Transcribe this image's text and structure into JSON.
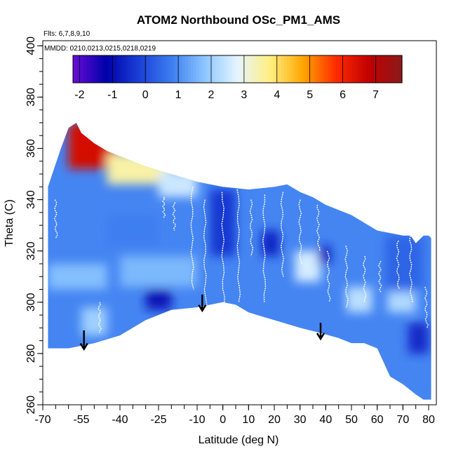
{
  "chart_data": {
    "type": "heatmap",
    "title": "ATOM2 Northbound OSc_PM1_AMS",
    "flights_note": "Flts: 6,7,8,9,10",
    "dates_note": "MMDD: 0210,0213,0215,0218,0219",
    "xlabel": "Latitude (deg N)",
    "ylabel": "Theta (C)",
    "xlim": [
      -70,
      83
    ],
    "ylim": [
      260,
      402
    ],
    "x_ticks": [
      -70,
      -55,
      -40,
      -25,
      -10,
      0,
      10,
      20,
      30,
      40,
      50,
      60,
      70,
      80
    ],
    "y_ticks": [
      260,
      280,
      300,
      320,
      340,
      360,
      380,
      400
    ],
    "colorbar": {
      "min": -2.2,
      "max": 7.8,
      "ticks": [
        -2,
        -1,
        0,
        1,
        2,
        3,
        4,
        5,
        6,
        7
      ],
      "colors": [
        "#6a0dd8",
        "#0000a8",
        "#1a3fd6",
        "#3d7ef0",
        "#8cc6ff",
        "#e6f5ff",
        "#ffef80",
        "#ffa500",
        "#ff2a00",
        "#c00000",
        "#8b1a1a"
      ]
    },
    "field_bounds": {
      "top": [
        [
          -68,
          345
        ],
        [
          -63,
          360
        ],
        [
          -60,
          368
        ],
        [
          -57,
          370
        ],
        [
          -55,
          366
        ],
        [
          -50,
          362
        ],
        [
          -45,
          359
        ],
        [
          -40,
          357
        ],
        [
          -30,
          353
        ],
        [
          -20,
          350
        ],
        [
          -10,
          347
        ],
        [
          0,
          345
        ],
        [
          10,
          344
        ],
        [
          20,
          345
        ],
        [
          25,
          346
        ],
        [
          30,
          343
        ],
        [
          35,
          341
        ],
        [
          40,
          338
        ],
        [
          45,
          336
        ],
        [
          50,
          334
        ],
        [
          55,
          331
        ],
        [
          60,
          328
        ],
        [
          65,
          327
        ],
        [
          70,
          326
        ],
        [
          73,
          326
        ],
        [
          75,
          323
        ],
        [
          78,
          326
        ],
        [
          80,
          326
        ],
        [
          81,
          325
        ]
      ],
      "bottom": [
        [
          -68,
          282
        ],
        [
          -60,
          282
        ],
        [
          -50,
          284
        ],
        [
          -40,
          287
        ],
        [
          -30,
          293
        ],
        [
          -20,
          297
        ],
        [
          -10,
          298
        ],
        [
          -5,
          299
        ],
        [
          0,
          300
        ],
        [
          5,
          299
        ],
        [
          10,
          296
        ],
        [
          20,
          293
        ],
        [
          30,
          290
        ],
        [
          38,
          288
        ],
        [
          45,
          286
        ],
        [
          50,
          284
        ],
        [
          55,
          284
        ],
        [
          60,
          282
        ],
        [
          65,
          271
        ],
        [
          70,
          268
        ],
        [
          75,
          264
        ],
        [
          78,
          262
        ],
        [
          81,
          262
        ]
      ]
    },
    "color_regions": [
      {
        "x": [
          -60,
          -40
        ],
        "y": [
          352,
          370
        ],
        "value": 6.5
      },
      {
        "x": [
          -45,
          -20
        ],
        "y": [
          346,
          358
        ],
        "value": 3.5
      },
      {
        "x": [
          -25,
          -10
        ],
        "y": [
          341,
          351
        ],
        "value": 2.5
      },
      {
        "x": [
          -68,
          -45
        ],
        "y": [
          305,
          315
        ],
        "value": 1.7
      },
      {
        "x": [
          -40,
          -10
        ],
        "y": [
          306,
          318
        ],
        "value": 1.6
      },
      {
        "x": [
          -30,
          -20
        ],
        "y": [
          297,
          305
        ],
        "value": -0.9
      },
      {
        "x": [
          -45,
          -25
        ],
        "y": [
          322,
          334
        ],
        "value": 0.8
      },
      {
        "x": [
          -55,
          -45
        ],
        "y": [
          287,
          298
        ],
        "value": 2.0
      },
      {
        "x": [
          -5,
          5
        ],
        "y": [
          318,
          344
        ],
        "value": -0.3
      },
      {
        "x": [
          15,
          22
        ],
        "y": [
          318,
          328
        ],
        "value": -0.6
      },
      {
        "x": [
          28,
          38
        ],
        "y": [
          308,
          320
        ],
        "value": 2.6
      },
      {
        "x": [
          37,
          42
        ],
        "y": [
          315,
          322
        ],
        "value": -0.7
      },
      {
        "x": [
          48,
          58
        ],
        "y": [
          296,
          306
        ],
        "value": 2.3
      },
      {
        "x": [
          64,
          75
        ],
        "y": [
          296,
          304
        ],
        "value": 2.2
      },
      {
        "x": [
          72,
          80
        ],
        "y": [
          280,
          292
        ],
        "value": -0.5
      },
      {
        "x": [
          63,
          78
        ],
        "y": [
          305,
          326
        ],
        "value": 0.4
      }
    ],
    "profile_traces": [
      {
        "x0": -23,
        "top": 341,
        "bottom": 333
      },
      {
        "x0": -19,
        "top": 339,
        "bottom": 328
      },
      {
        "x0": -12,
        "top": 345,
        "bottom": 305
      },
      {
        "x0": -7,
        "top": 340,
        "bottom": 299
      },
      {
        "x0": 0,
        "top": 343,
        "bottom": 299
      },
      {
        "x0": 6,
        "top": 344,
        "bottom": 300
      },
      {
        "x0": 11,
        "top": 340,
        "bottom": 318
      },
      {
        "x0": 16,
        "top": 342,
        "bottom": 300
      },
      {
        "x0": 23,
        "top": 343,
        "bottom": 310
      },
      {
        "x0": 30,
        "top": 340,
        "bottom": 315
      },
      {
        "x0": 37,
        "top": 338,
        "bottom": 320
      },
      {
        "x0": 41,
        "top": 320,
        "bottom": 300
      },
      {
        "x0": 48,
        "top": 322,
        "bottom": 298
      },
      {
        "x0": 55,
        "top": 318,
        "bottom": 300
      },
      {
        "x0": 61,
        "top": 316,
        "bottom": 304
      },
      {
        "x0": 68,
        "top": 324,
        "bottom": 305
      },
      {
        "x0": 73,
        "top": 326,
        "bottom": 300
      },
      {
        "x0": 79,
        "top": 306,
        "bottom": 290
      },
      {
        "x0": -65,
        "top": 340,
        "bottom": 325
      },
      {
        "x0": -48,
        "top": 300,
        "bottom": 288
      }
    ],
    "arrows": [
      {
        "lat": -54,
        "theta_top": 289,
        "theta_bottom": 282
      },
      {
        "lat": -8,
        "theta_top": 303,
        "theta_bottom": 297
      },
      {
        "lat": 38,
        "theta_top": 292,
        "theta_bottom": 286
      }
    ]
  }
}
